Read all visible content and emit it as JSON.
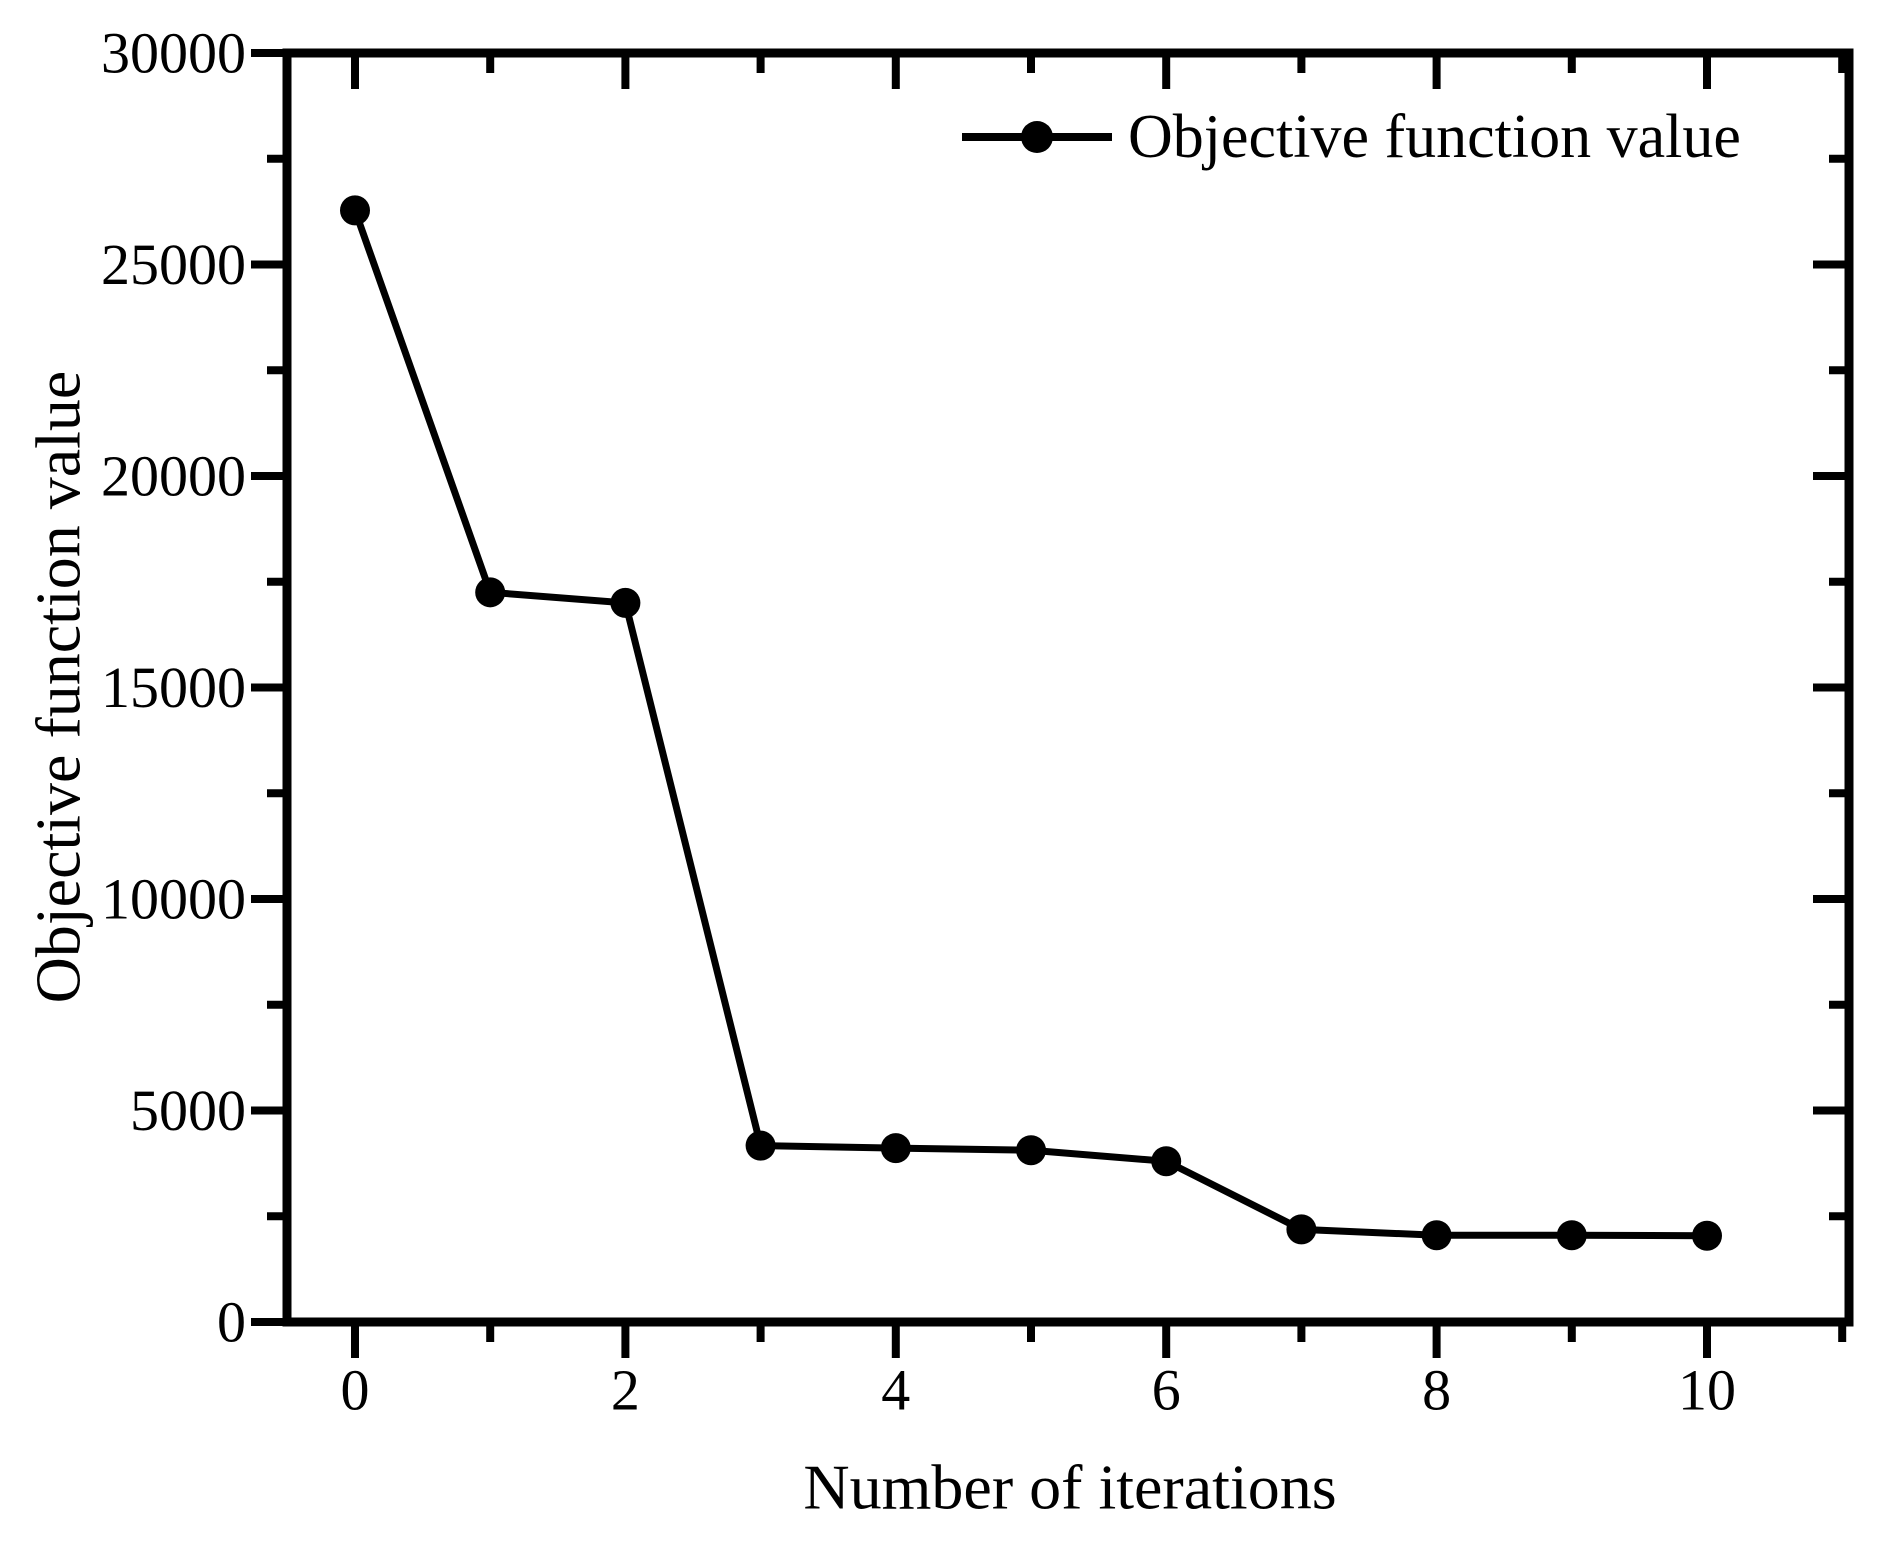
{
  "figure": {
    "background": "#ffffff",
    "ink_color": "#000000",
    "legend": {
      "label": "Objective function value",
      "marker": "filled-circle"
    }
  },
  "chart_data": {
    "type": "line",
    "title": "",
    "xlabel": "Number of iterations",
    "ylabel": "Objective function value",
    "x": [
      0,
      1,
      2,
      3,
      4,
      5,
      6,
      7,
      8,
      9,
      10
    ],
    "series": [
      {
        "name": "Objective function value",
        "values": [
          26280,
          17250,
          17000,
          4170,
          4110,
          4060,
          3800,
          2190,
          2050,
          2050,
          2040
        ],
        "color": "#000000",
        "marker": "circle"
      }
    ],
    "xlim": [
      -0.5,
      11.05
    ],
    "ylim": [
      0,
      30000
    ],
    "x_major_ticks": [
      0,
      2,
      4,
      6,
      8,
      10
    ],
    "x_minor_ticks": [
      1,
      3,
      5,
      7,
      9,
      11
    ],
    "y_major_ticks": [
      0,
      5000,
      10000,
      15000,
      20000,
      25000,
      30000
    ],
    "y_minor_ticks": [
      2500,
      7500,
      12500,
      17500,
      22500,
      27500
    ],
    "grid": false,
    "legend_position": "upper right",
    "tick_style": "out-bottom-left, in-top-right"
  }
}
